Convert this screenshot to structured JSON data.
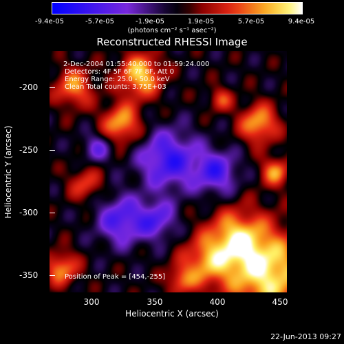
{
  "colorbar": {
    "ticks": [
      "-9.4e-05",
      "-5.7e-05",
      "-1.9e-05",
      "1.9e-05",
      "5.7e-05",
      "9.4e-05"
    ],
    "units": "(photons cm⁻² s⁻¹ asec⁻²)"
  },
  "title": "Reconstructed RHESSI Image",
  "annotations": {
    "time": "2-Dec-2004 01:55:40.000 to 01:59:24.000",
    "detectors": "Detectors: 4F 5F 6F 7F 8F, Att 0",
    "energy": "Energy Range: 25.0 - 50.0 keV",
    "method": "Clean     Total counts: 3.75E+03",
    "peak": "Position of Peak = [454,-255]"
  },
  "axes": {
    "xlabel": "Heliocentric X (arcsec)",
    "ylabel": "Heliocentric Y (arcsec)",
    "xticks": [
      "300",
      "350",
      "400",
      "450"
    ],
    "yticks": [
      "-200",
      "-250",
      "-300",
      "-350"
    ],
    "xrange": [
      270,
      462
    ],
    "yrange": [
      -370,
      -175
    ]
  },
  "footer": {
    "date": "22-Jun-2013 09:27"
  },
  "colors": {
    "background": "#000000",
    "text": "#ffffff"
  }
}
